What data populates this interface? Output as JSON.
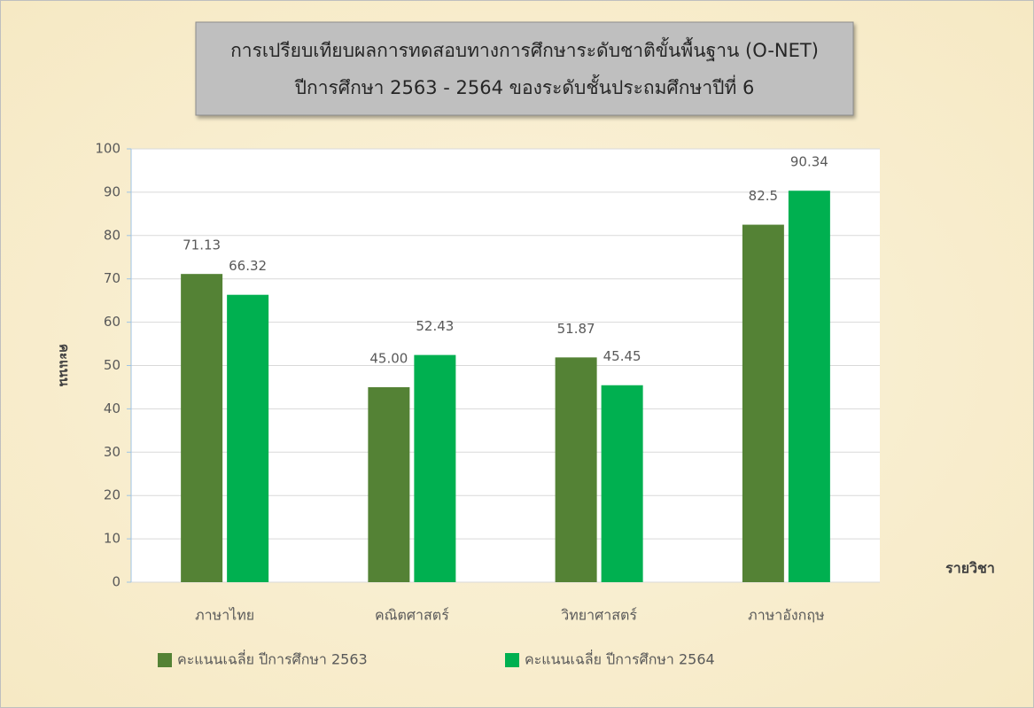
{
  "chart_data": {
    "type": "bar",
    "title": "การเปรียบเทียบผลการทดสอบทางการศึกษาระดับชาติขั้นพื้นฐาน (O-NET)",
    "subtitle": "ปีการศึกษา 2563 - 2564 ของระดับชั้นประถมศึกษาปีที่ 6",
    "y_label": "คะแนน",
    "x_label": "รายวิชา",
    "categories": [
      "ภาษาไทย",
      "คณิตศาสตร์",
      "วิทยาศาสตร์",
      "ภาษาอังกฤษ"
    ],
    "series": [
      {
        "name": "คะแนนเฉลี่ย ปีการศึกษา 2563",
        "color": "#548235",
        "values": [
          71.13,
          45.0,
          51.87,
          82.5
        ],
        "value_labels": [
          "71.13",
          "45.00",
          "51.87",
          "82.5"
        ]
      },
      {
        "name": "คะแนนเฉลี่ย ปีการศึกษา 2564",
        "color": "#00b050",
        "values": [
          66.32,
          52.43,
          45.45,
          90.34
        ]
      }
    ],
    "ylim": [
      0,
      100
    ],
    "yticks": [
      0,
      10,
      20,
      30,
      40,
      50,
      60,
      70,
      80,
      90,
      100
    ],
    "grid": true
  }
}
